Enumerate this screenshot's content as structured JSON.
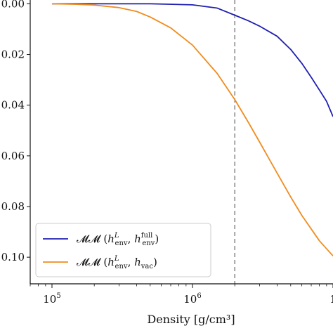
{
  "chart_data": {
    "type": "line",
    "xlabel": "Density [g/cm³]",
    "ylabel": "",
    "xscale": "log",
    "xlim": [
      70000,
      10000000
    ],
    "ylim": [
      -0.1105,
      0.0015
    ],
    "grid": false,
    "legend_position": "bottom-left",
    "x_ticks": [
      {
        "value": 100000,
        "base": "10",
        "exp": "5"
      },
      {
        "value": 1000000,
        "base": "10",
        "exp": "6"
      },
      {
        "value": 10000000,
        "base": "1",
        "exp": ""
      }
    ],
    "y_ticks": [
      {
        "value": 0.0,
        "label": "0.00"
      },
      {
        "value": -0.02,
        "label": "0.02"
      },
      {
        "value": -0.04,
        "label": "0.04"
      },
      {
        "value": -0.06,
        "label": "0.06"
      },
      {
        "value": -0.08,
        "label": "0.08"
      },
      {
        "value": -0.1,
        "label": "0.10"
      }
    ],
    "vline": {
      "x": 2000000,
      "color": "#7f7f7f",
      "style": "dashed"
    },
    "series": [
      {
        "name": "𝓜𝓜 (h_env^L, h_env^full)",
        "color": "#1f1fb0",
        "x": [
          100000,
          200000,
          500000,
          1000000,
          1500000,
          2000000,
          2500000,
          3000000,
          4000000,
          5000000,
          6000000,
          7000000,
          8000000,
          9000000,
          10000000
        ],
        "y": [
          0.0,
          0.0,
          0.0,
          -0.0004,
          -0.0017,
          -0.0045,
          -0.0067,
          -0.0088,
          -0.0128,
          -0.018,
          -0.0235,
          -0.029,
          -0.034,
          -0.0385,
          -0.0445
        ]
      },
      {
        "name": "𝓜𝓜 (h_env^L, h_vac)",
        "color": "#f08c1e",
        "x": [
          100000,
          150000,
          200000,
          300000,
          400000,
          500000,
          700000,
          1000000,
          1500000,
          2000000,
          2500000,
          3000000,
          4000000,
          5000000,
          6000000,
          8000000,
          10000000
        ],
        "y": [
          0.0,
          -0.0002,
          -0.0005,
          -0.0015,
          -0.003,
          -0.0052,
          -0.0095,
          -0.0163,
          -0.0275,
          -0.0378,
          -0.0468,
          -0.0545,
          -0.0668,
          -0.0762,
          -0.0835,
          -0.0935,
          -0.0995
        ]
      }
    ],
    "legend": [
      {
        "main": "𝓜𝓜 (",
        "h1": "h",
        "h1_sup": "L",
        "h1_sub": "env",
        "sep": ", ",
        "h2": "h",
        "h2_sup": "full",
        "h2_sub": "env",
        "close": ")"
      },
      {
        "main": "𝓜𝓜 (",
        "h1": "h",
        "h1_sup": "L",
        "h1_sub": "env",
        "sep": ", ",
        "h2": "h",
        "h2_sup": "",
        "h2_sub": "vac",
        "close": ")"
      }
    ]
  }
}
